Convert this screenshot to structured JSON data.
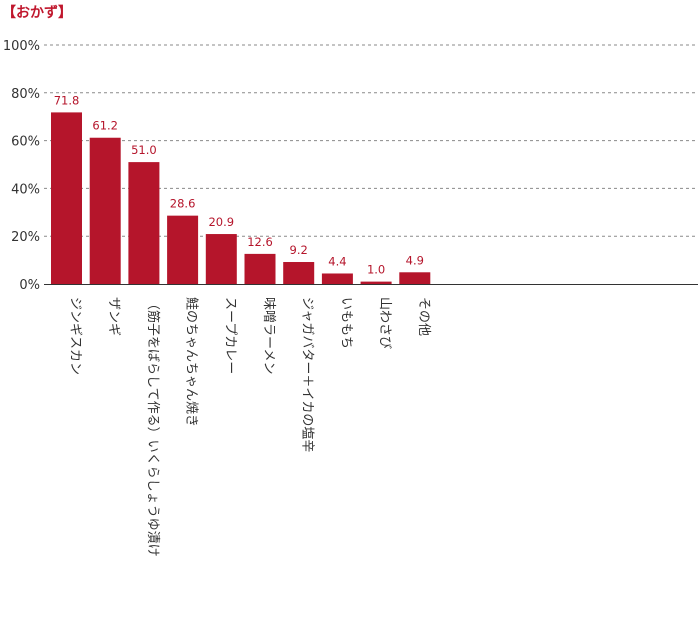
{
  "chart_data": {
    "type": "bar",
    "title": "【おかず】",
    "xlabel": "",
    "ylabel": "",
    "ylim": [
      0,
      100
    ],
    "yticks": [
      0,
      20,
      40,
      60,
      80,
      100
    ],
    "ytick_labels": [
      "0%",
      "20%",
      "40%",
      "60%",
      "80%",
      "100%"
    ],
    "grid": true,
    "categories": [
      "ジンギスカン",
      "ザンギ",
      "（筋子をばらして作る）いくらしょうゆ漬け",
      "鮭のちゃんちゃん焼き",
      "スープカレー",
      "味噌ラーメン",
      "ジャガバター＋イカの塩辛",
      "いももち",
      "山わさび",
      "その他"
    ],
    "values": [
      71.8,
      61.2,
      51.0,
      28.6,
      20.9,
      12.6,
      9.2,
      4.4,
      1.0,
      4.9
    ],
    "value_labels": [
      "71.8",
      "61.2",
      "51.0",
      "28.6",
      "20.9",
      "12.6",
      "9.2",
      "4.4",
      "1.0",
      "4.9"
    ],
    "bar_color": "#b5152b",
    "label_color": "#b5152b",
    "title_color": "#c0172d"
  }
}
